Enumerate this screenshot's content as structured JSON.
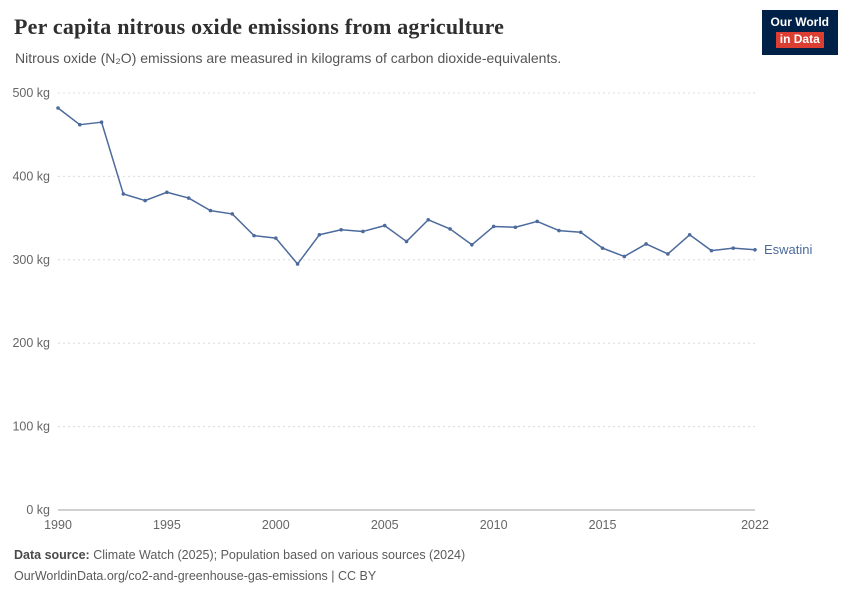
{
  "header": {
    "title": "Per capita nitrous oxide emissions from agriculture",
    "subtitle": "Nitrous oxide (N₂O) emissions are measured in kilograms of carbon dioxide-equivalents.",
    "logo": {
      "line1": "Our World",
      "line2": "in Data"
    }
  },
  "chart_data": {
    "type": "line",
    "title": "Per capita nitrous oxide emissions from agriculture",
    "xlabel": "",
    "ylabel": "",
    "x": [
      1990,
      1991,
      1992,
      1993,
      1994,
      1995,
      1996,
      1997,
      1998,
      1999,
      2000,
      2001,
      2002,
      2003,
      2004,
      2005,
      2006,
      2007,
      2008,
      2009,
      2010,
      2011,
      2012,
      2013,
      2014,
      2015,
      2016,
      2017,
      2018,
      2019,
      2020,
      2021,
      2022
    ],
    "series": [
      {
        "name": "Eswatini",
        "color": "#4c6a9c",
        "values": [
          482,
          462,
          465,
          379,
          371,
          381,
          374,
          359,
          355,
          329,
          326,
          295,
          330,
          336,
          334,
          341,
          322,
          348,
          337,
          318,
          340,
          339,
          346,
          335,
          333,
          314,
          304,
          319,
          307,
          330,
          311,
          314,
          312
        ]
      }
    ],
    "ylim": [
      0,
      500
    ],
    "yticks": [
      0,
      100,
      200,
      300,
      400,
      500
    ],
    "ytick_suffix": " kg",
    "xticks": [
      1990,
      1995,
      2000,
      2005,
      2010,
      2015,
      2022
    ],
    "grid": true,
    "grid_style": "dashed",
    "legend_position": "end-of-line",
    "axis_color": "#a1a1a1",
    "gridline_color": "#dcdcdc",
    "tick_label_color": "#666666"
  },
  "footer": {
    "source_label": "Data source:",
    "source_text": "Climate Watch (2025); Population based on various sources (2024)",
    "link_line": "OurWorldinData.org/co2-and-greenhouse-gas-emissions | CC BY"
  }
}
